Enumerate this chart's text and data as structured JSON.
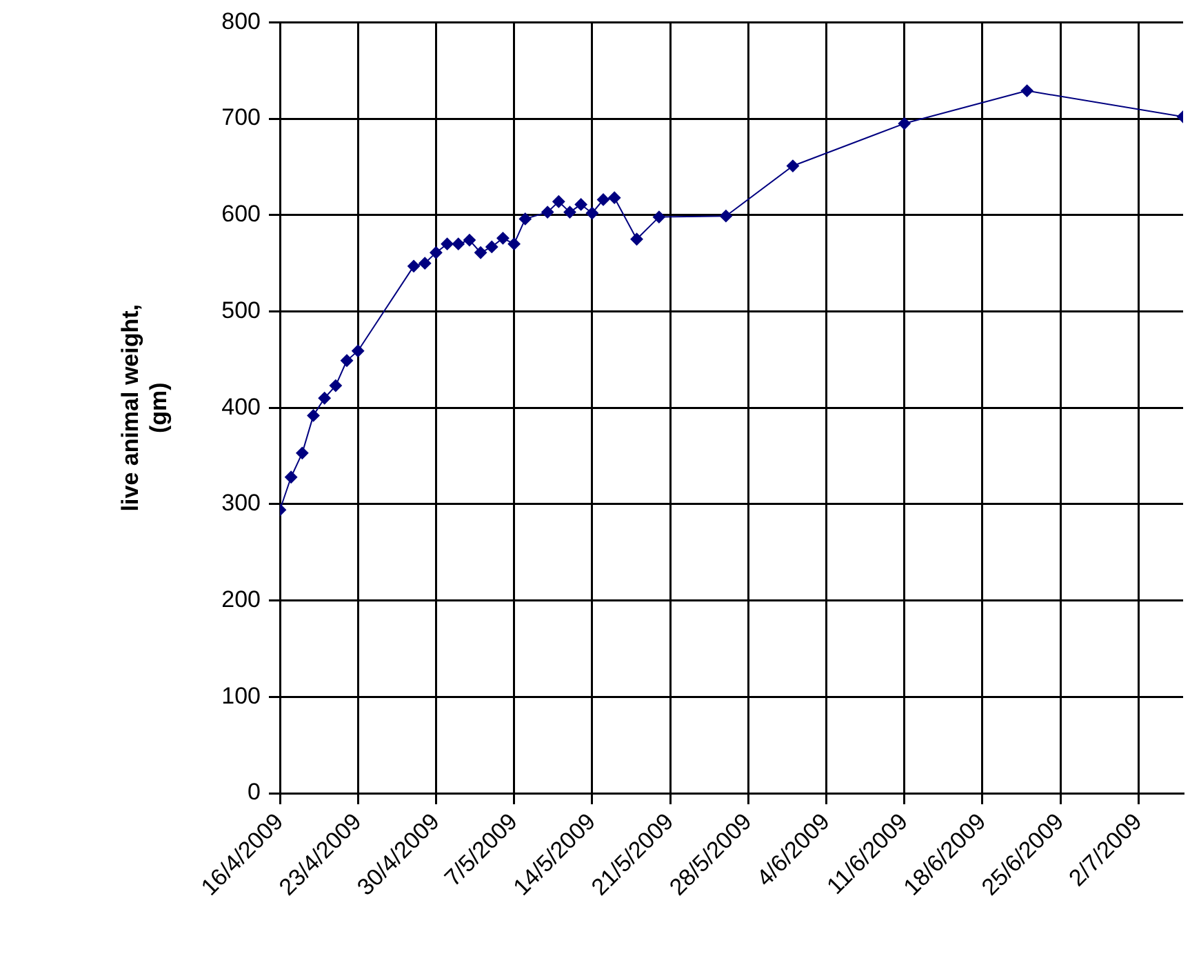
{
  "chart_data": {
    "type": "line",
    "ylabel": "live animal weight,\n(gm)",
    "x": [
      "2009-04-16",
      "2009-04-17",
      "2009-04-18",
      "2009-04-19",
      "2009-04-20",
      "2009-04-21",
      "2009-04-22",
      "2009-04-23",
      "2009-04-28",
      "2009-04-29",
      "2009-04-30",
      "2009-05-01",
      "2009-05-02",
      "2009-05-03",
      "2009-05-04",
      "2009-05-05",
      "2009-05-06",
      "2009-05-07",
      "2009-05-08",
      "2009-05-10",
      "2009-05-11",
      "2009-05-12",
      "2009-05-13",
      "2009-05-14",
      "2009-05-15",
      "2009-05-16",
      "2009-05-18",
      "2009-05-20",
      "2009-05-26",
      "2009-06-01",
      "2009-06-11",
      "2009-06-22",
      "2009-07-06"
    ],
    "series": [
      {
        "color": "#000080",
        "values": [
          294,
          328,
          353,
          392,
          410,
          423,
          449,
          459,
          547,
          550,
          561,
          570,
          570,
          574,
          561,
          567,
          576,
          570,
          596,
          603,
          614,
          603,
          611,
          602,
          616,
          618,
          575,
          598,
          599,
          651,
          695,
          729,
          702
        ]
      }
    ],
    "xlim": [
      "2009-04-16",
      "2009-07-06"
    ],
    "xticks": [
      {
        "value": "2009-04-16",
        "label": "16/4/2009"
      },
      {
        "value": "2009-04-23",
        "label": "23/4/2009"
      },
      {
        "value": "2009-04-30",
        "label": "30/4/2009"
      },
      {
        "value": "2009-05-07",
        "label": "7/5/2009"
      },
      {
        "value": "2009-05-14",
        "label": "14/5/2009"
      },
      {
        "value": "2009-05-21",
        "label": "21/5/2009"
      },
      {
        "value": "2009-05-28",
        "label": "28/5/2009"
      },
      {
        "value": "2009-06-04",
        "label": "4/6/2009"
      },
      {
        "value": "2009-06-11",
        "label": "11/6/2009"
      },
      {
        "value": "2009-06-18",
        "label": "18/6/2009"
      },
      {
        "value": "2009-06-25",
        "label": "25/6/2009"
      },
      {
        "value": "2009-07-02",
        "label": "2/7/2009"
      }
    ],
    "ylim": [
      0,
      800
    ],
    "yticks": [
      0,
      100,
      200,
      300,
      400,
      500,
      600,
      700,
      800
    ],
    "grid": true,
    "legend": false,
    "marker": "diamond",
    "line_style": "solid"
  }
}
